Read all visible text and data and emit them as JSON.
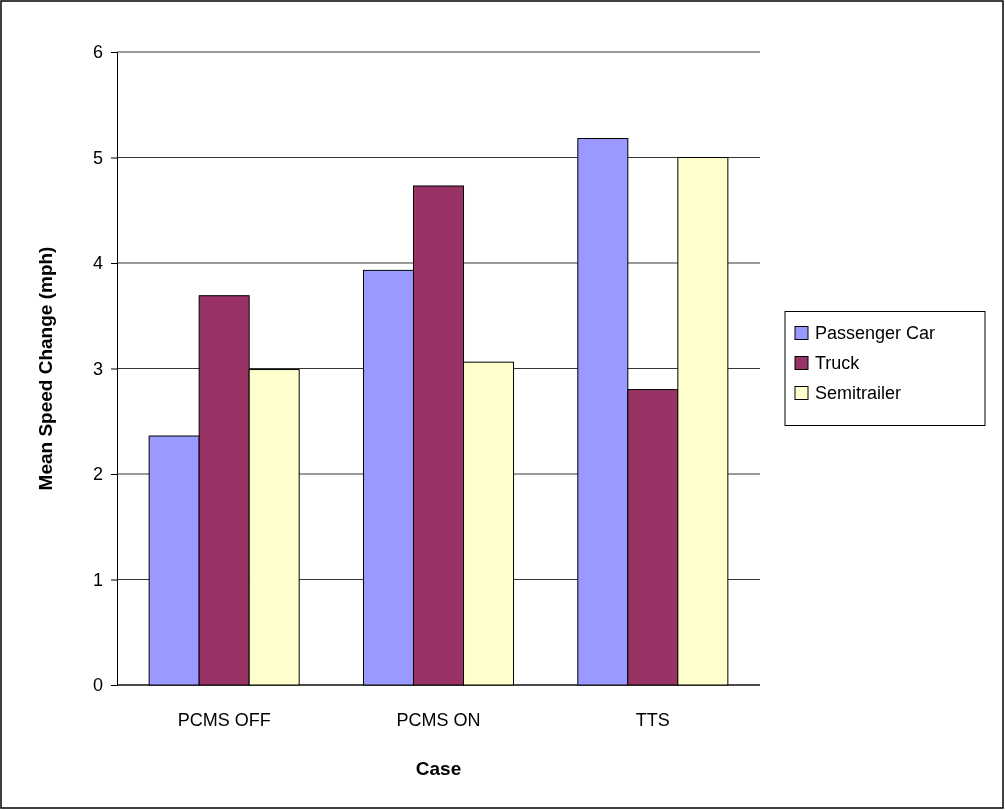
{
  "chart_data": {
    "type": "bar",
    "xlabel": "Case",
    "ylabel": "Mean Speed Change (mph)",
    "categories": [
      "PCMS OFF",
      "PCMS ON",
      "TTS"
    ],
    "series": [
      {
        "name": "Passenger Car",
        "color": "#9999ff",
        "values": [
          2.36,
          3.93,
          5.18
        ]
      },
      {
        "name": "Truck",
        "color": "#993366",
        "values": [
          3.69,
          4.73,
          2.8
        ]
      },
      {
        "name": "Semitrailer",
        "color": "#ffffcc",
        "values": [
          2.99,
          3.06,
          5.0
        ]
      }
    ],
    "ylim": [
      0,
      6
    ],
    "yticks": [
      0,
      1,
      2,
      3,
      4,
      5,
      6
    ],
    "grid": "y",
    "legend": "right"
  }
}
